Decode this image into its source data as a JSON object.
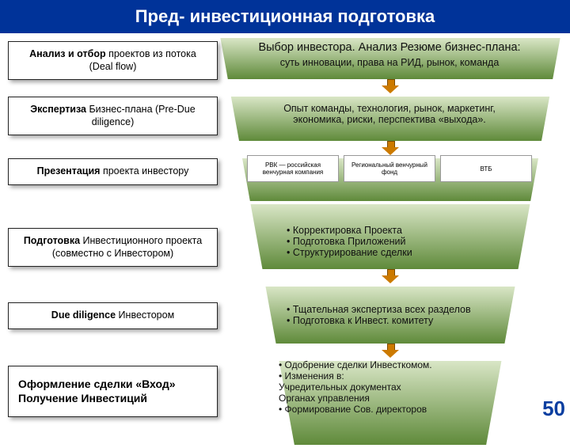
{
  "header": "Пред- инвестиционная подготовка",
  "page_number": "50",
  "colors": {
    "header_bg": "#003399",
    "funnel_band_top": "#d9e6c6",
    "funnel_band_bot": "#5f8a3a",
    "arrow": "#cc7a00",
    "page_num": "#0a3ea0"
  },
  "left": [
    {
      "html": "<b>Анализ и отбор</b> проектов из потока (Deal flow)"
    },
    {
      "html": "<b>Экспертиза</b> Бизнес-плана (Pre-Due diligence)"
    },
    {
      "html": "<b>Презентация</b> проекта инвестору"
    },
    {
      "html": "<b>Подготовка</b> Инвестиционного проекта<br>(совместно с Инвестором)"
    },
    {
      "html": "<b>Due diligence</b> Инвестором"
    },
    {
      "html": "<b>Оформление сделки «Вход»<br>Получение Инвестиций</b>",
      "big": true
    }
  ],
  "right": {
    "r1_title": "Выбор инвестора. Анализ Резюме бизнес-плана:",
    "r1_sub": "суть инновации, права на РИД, рынок, команда",
    "r2": "Опыт команды, технология, рынок, маркетинг,\nэкономика, риски, перспектива «выхода».",
    "logos": [
      "РВК — российская венчурная компания",
      "Региональный венчурный фонд",
      "ВТБ"
    ],
    "r4": "• Корректировка Проекта\n• Подготовка Приложений\n• Структурирование сделки",
    "r5": "• Тщательная экспертиза всех разделов\n• Подготовка к Инвест. комитету",
    "r6": "• Одобрение сделки Инвесткомом.\n• Изменения в:\n    Учредительных документах\n    Органах управления\n• Формирование Сов. директоров"
  },
  "layout": {
    "band_heights": [
      56,
      60,
      58,
      86,
      76,
      110
    ],
    "arrow_after_band": [
      true,
      true,
      false,
      true,
      true,
      false
    ]
  }
}
